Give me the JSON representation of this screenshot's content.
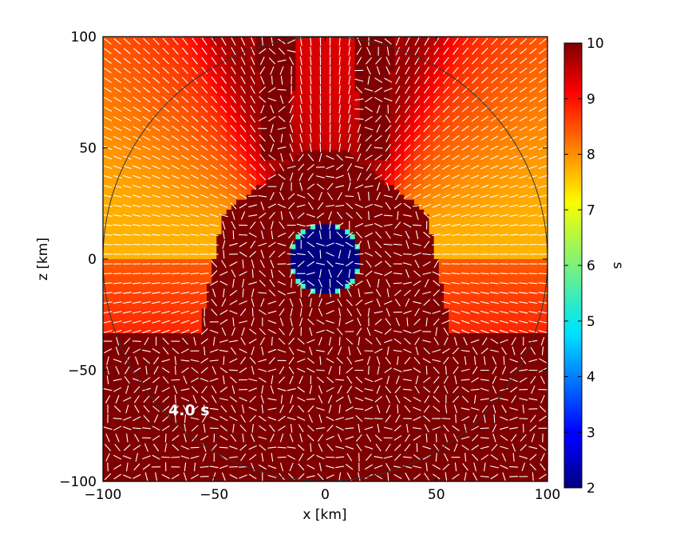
{
  "chart_data": {
    "type": "heatmap",
    "xlabel": "x [km]",
    "ylabel": "z [km]",
    "xlim": [
      -100,
      100
    ],
    "ylim": [
      -100,
      100
    ],
    "xticks": [
      -100,
      -50,
      0,
      50,
      100
    ],
    "yticks": [
      -100,
      -50,
      0,
      50,
      100
    ],
    "xtick_labels": [
      "−100",
      "−50",
      "0",
      "50",
      "100"
    ],
    "ytick_labels": [
      "−100",
      "−50",
      "0",
      "50",
      "100"
    ],
    "colorbar": {
      "label": "s",
      "range": [
        2,
        10
      ],
      "ticks": [
        2,
        3,
        4,
        5,
        6,
        7,
        8,
        9,
        10
      ],
      "tick_labels": [
        "2",
        "3",
        "4",
        "5",
        "6",
        "7",
        "8",
        "9",
        "10"
      ],
      "colormap": "jet"
    },
    "annotation": "4.0 s",
    "overlay_circle_radius": 100,
    "regions": {
      "inner_core_radius": 15,
      "inner_core_value": 2,
      "shocked_region_value": 10,
      "jet_value": 10,
      "outer_upper_value_range": [
        7.5,
        9.5
      ],
      "outer_lower_value": 10,
      "jets_center_x": [
        -22,
        22
      ]
    },
    "vector_field_color": "#ffffff"
  }
}
